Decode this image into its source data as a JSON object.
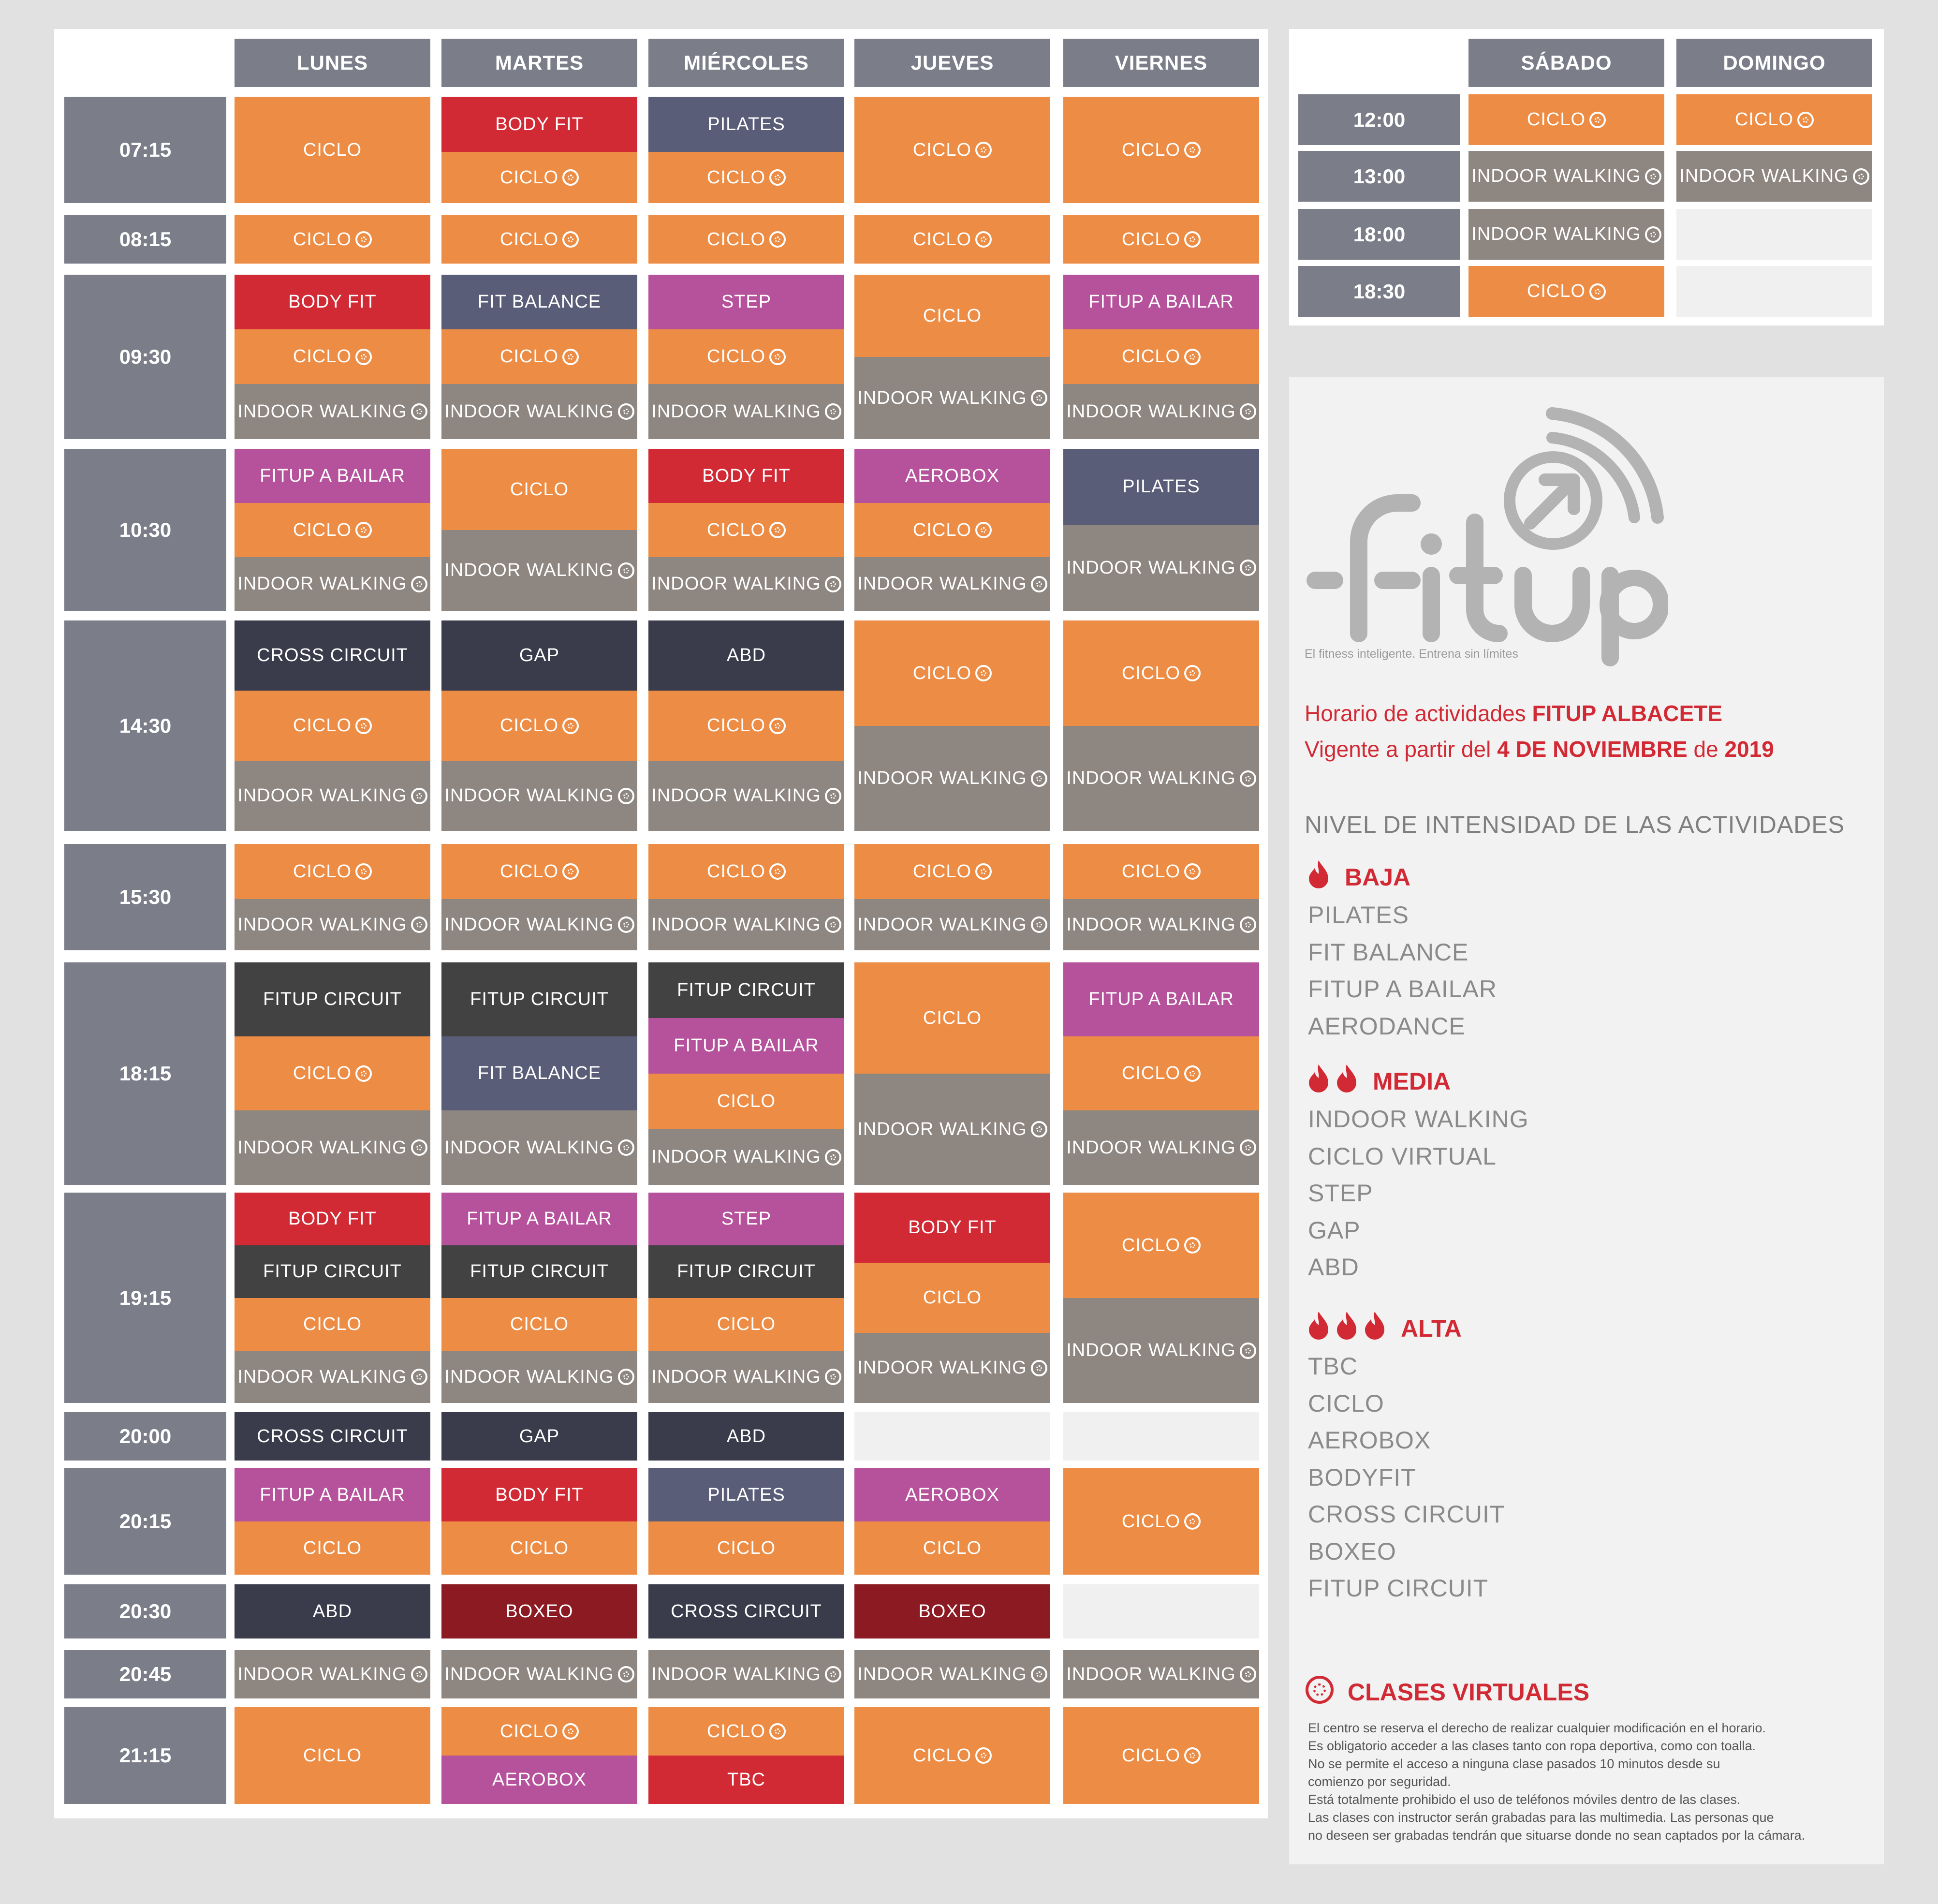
{
  "weekday_headers": [
    "LUNES",
    "MARTES",
    "MIÉRCOLES",
    "JUEVES",
    "VIERNES"
  ],
  "weekend_headers": [
    "SÁBADO",
    "DOMINGO"
  ],
  "colors": {
    "ciclo": "#ed8d45",
    "indoor_walking": "#8e8680",
    "body_fit": "#d22a35",
    "pilates": "#5a5d78",
    "fit_balance": "#5a5d78",
    "step": "#b6519b",
    "fitup_a_bailar": "#b6519b",
    "aerobox": "#b6519b",
    "dark": "#3a3b4b",
    "fitup_circuit": "#424242",
    "boxeo": "#8b1a22",
    "empty": "#f0f0f0",
    "header": "#7b7d89",
    "red_text": "#d22a35"
  },
  "time_rows": [
    {
      "time": "07:15",
      "days": [
        [
          {
            "label": "CICLO",
            "color": "ciclo",
            "v": false
          }
        ],
        [
          {
            "label": "BODY FIT",
            "color": "body_fit",
            "v": false
          },
          {
            "label": "CICLO",
            "color": "ciclo",
            "v": true
          }
        ],
        [
          {
            "label": "PILATES",
            "color": "pilates",
            "v": false
          },
          {
            "label": "CICLO",
            "color": "ciclo",
            "v": true
          }
        ],
        [
          {
            "label": "CICLO",
            "color": "ciclo",
            "v": true
          }
        ],
        [
          {
            "label": "CICLO",
            "color": "ciclo",
            "v": true
          }
        ]
      ]
    },
    {
      "time": "08:15",
      "days": [
        [
          {
            "label": "CICLO",
            "color": "ciclo",
            "v": true
          }
        ],
        [
          {
            "label": "CICLO",
            "color": "ciclo",
            "v": true
          }
        ],
        [
          {
            "label": "CICLO",
            "color": "ciclo",
            "v": true
          }
        ],
        [
          {
            "label": "CICLO",
            "color": "ciclo",
            "v": true
          }
        ],
        [
          {
            "label": "CICLO",
            "color": "ciclo",
            "v": true
          }
        ]
      ]
    },
    {
      "time": "09:30",
      "days": [
        [
          {
            "label": "BODY FIT",
            "color": "body_fit",
            "v": false
          },
          {
            "label": "CICLO",
            "color": "ciclo",
            "v": true
          },
          {
            "label": "INDOOR WALKING",
            "color": "indoor_walking",
            "v": true
          }
        ],
        [
          {
            "label": "FIT BALANCE",
            "color": "fit_balance",
            "v": false
          },
          {
            "label": "CICLO",
            "color": "ciclo",
            "v": true
          },
          {
            "label": "INDOOR WALKING",
            "color": "indoor_walking",
            "v": true
          }
        ],
        [
          {
            "label": "STEP",
            "color": "step",
            "v": false
          },
          {
            "label": "CICLO",
            "color": "ciclo",
            "v": true
          },
          {
            "label": "INDOOR WALKING",
            "color": "indoor_walking",
            "v": true
          }
        ],
        [
          {
            "label": "CICLO",
            "color": "ciclo",
            "v": false
          },
          {
            "label": "INDOOR WALKING",
            "color": "indoor_walking",
            "v": true
          }
        ],
        [
          {
            "label": "FITUP A BAILAR",
            "color": "fitup_a_bailar",
            "v": false
          },
          {
            "label": "CICLO",
            "color": "ciclo",
            "v": true
          },
          {
            "label": "INDOOR WALKING",
            "color": "indoor_walking",
            "v": true
          }
        ]
      ]
    },
    {
      "time": "10:30",
      "days": [
        [
          {
            "label": "FITUP A BAILAR",
            "color": "fitup_a_bailar",
            "v": false
          },
          {
            "label": "CICLO",
            "color": "ciclo",
            "v": true
          },
          {
            "label": "INDOOR WALKING",
            "color": "indoor_walking",
            "v": true
          }
        ],
        [
          {
            "label": "CICLO",
            "color": "ciclo",
            "v": false
          },
          {
            "label": "INDOOR WALKING",
            "color": "indoor_walking",
            "v": true
          }
        ],
        [
          {
            "label": "BODY FIT",
            "color": "body_fit",
            "v": false
          },
          {
            "label": "CICLO",
            "color": "ciclo",
            "v": true
          },
          {
            "label": "INDOOR WALKING",
            "color": "indoor_walking",
            "v": true
          }
        ],
        [
          {
            "label": "AEROBOX",
            "color": "aerobox",
            "v": false
          },
          {
            "label": "CICLO",
            "color": "ciclo",
            "v": true
          },
          {
            "label": "INDOOR WALKING",
            "color": "indoor_walking",
            "v": true
          }
        ],
        [
          {
            "label": "PILATES",
            "color": "pilates",
            "v": false
          },
          {
            "label": "INDOOR WALKING",
            "color": "indoor_walking",
            "v": true
          }
        ]
      ]
    },
    {
      "time": "14:30",
      "days": [
        [
          {
            "label": "CROSS CIRCUIT",
            "color": "dark",
            "v": false
          },
          {
            "label": "CICLO",
            "color": "ciclo",
            "v": true
          },
          {
            "label": "INDOOR WALKING",
            "color": "indoor_walking",
            "v": true
          }
        ],
        [
          {
            "label": "GAP",
            "color": "dark",
            "v": false
          },
          {
            "label": "CICLO",
            "color": "ciclo",
            "v": true
          },
          {
            "label": "INDOOR WALKING",
            "color": "indoor_walking",
            "v": true
          }
        ],
        [
          {
            "label": "ABD",
            "color": "dark",
            "v": false
          },
          {
            "label": "CICLO",
            "color": "ciclo",
            "v": true
          },
          {
            "label": "INDOOR WALKING",
            "color": "indoor_walking",
            "v": true
          }
        ],
        [
          {
            "label": "CICLO",
            "color": "ciclo",
            "v": true
          },
          {
            "label": "INDOOR WALKING",
            "color": "indoor_walking",
            "v": true
          }
        ],
        [
          {
            "label": "CICLO",
            "color": "ciclo",
            "v": true
          },
          {
            "label": "INDOOR WALKING",
            "color": "indoor_walking",
            "v": true
          }
        ]
      ]
    },
    {
      "time": "15:30",
      "days": [
        [
          {
            "label": "CICLO",
            "color": "ciclo",
            "v": true
          },
          {
            "label": "INDOOR WALKING",
            "color": "indoor_walking",
            "v": true
          }
        ],
        [
          {
            "label": "CICLO",
            "color": "ciclo",
            "v": true
          },
          {
            "label": "INDOOR WALKING",
            "color": "indoor_walking",
            "v": true
          }
        ],
        [
          {
            "label": "CICLO",
            "color": "ciclo",
            "v": true
          },
          {
            "label": "INDOOR WALKING",
            "color": "indoor_walking",
            "v": true
          }
        ],
        [
          {
            "label": "CICLO",
            "color": "ciclo",
            "v": true
          },
          {
            "label": "INDOOR WALKING",
            "color": "indoor_walking",
            "v": true
          }
        ],
        [
          {
            "label": "CICLO",
            "color": "ciclo",
            "v": true
          },
          {
            "label": "INDOOR WALKING",
            "color": "indoor_walking",
            "v": true
          }
        ]
      ]
    },
    {
      "time": "18:15",
      "days": [
        [
          {
            "label": "FITUP CIRCUIT",
            "color": "fitup_circuit",
            "v": false
          },
          {
            "label": "CICLO",
            "color": "ciclo",
            "v": true
          },
          {
            "label": "INDOOR WALKING",
            "color": "indoor_walking",
            "v": true
          }
        ],
        [
          {
            "label": "FITUP CIRCUIT",
            "color": "fitup_circuit",
            "v": false
          },
          {
            "label": "FIT BALANCE",
            "color": "fit_balance",
            "v": false
          },
          {
            "label": "INDOOR WALKING",
            "color": "indoor_walking",
            "v": true
          }
        ],
        [
          {
            "label": "FITUP CIRCUIT",
            "color": "fitup_circuit",
            "v": false
          },
          {
            "label": "FITUP A BAILAR",
            "color": "fitup_a_bailar",
            "v": false
          },
          {
            "label": "CICLO",
            "color": "ciclo",
            "v": false
          },
          {
            "label": "INDOOR WALKING",
            "color": "indoor_walking",
            "v": true
          }
        ],
        [
          {
            "label": "CICLO",
            "color": "ciclo",
            "v": false
          },
          {
            "label": "INDOOR WALKING",
            "color": "indoor_walking",
            "v": true
          }
        ],
        [
          {
            "label": "FITUP A BAILAR",
            "color": "fitup_a_bailar",
            "v": false
          },
          {
            "label": "CICLO",
            "color": "ciclo",
            "v": true
          },
          {
            "label": "INDOOR WALKING",
            "color": "indoor_walking",
            "v": true
          }
        ]
      ]
    },
    {
      "time": "19:15",
      "days": [
        [
          {
            "label": "BODY FIT",
            "color": "body_fit",
            "v": false
          },
          {
            "label": "FITUP CIRCUIT",
            "color": "fitup_circuit",
            "v": false
          },
          {
            "label": "CICLO",
            "color": "ciclo",
            "v": false
          },
          {
            "label": "INDOOR WALKING",
            "color": "indoor_walking",
            "v": true
          }
        ],
        [
          {
            "label": "FITUP A BAILAR",
            "color": "fitup_a_bailar",
            "v": false
          },
          {
            "label": "FITUP CIRCUIT",
            "color": "fitup_circuit",
            "v": false
          },
          {
            "label": "CICLO",
            "color": "ciclo",
            "v": false
          },
          {
            "label": "INDOOR WALKING",
            "color": "indoor_walking",
            "v": true
          }
        ],
        [
          {
            "label": "STEP",
            "color": "step",
            "v": false
          },
          {
            "label": "FITUP CIRCUIT",
            "color": "fitup_circuit",
            "v": false
          },
          {
            "label": "CICLO",
            "color": "ciclo",
            "v": false
          },
          {
            "label": "INDOOR WALKING",
            "color": "indoor_walking",
            "v": true
          }
        ],
        [
          {
            "label": "BODY FIT",
            "color": "body_fit",
            "v": false
          },
          {
            "label": "CICLO",
            "color": "ciclo",
            "v": false
          },
          {
            "label": "INDOOR WALKING",
            "color": "indoor_walking",
            "v": true
          }
        ],
        [
          {
            "label": "CICLO",
            "color": "ciclo",
            "v": true
          },
          {
            "label": "INDOOR WALKING",
            "color": "indoor_walking",
            "v": true
          }
        ]
      ]
    },
    {
      "time": "20:00",
      "days": [
        [
          {
            "label": "CROSS CIRCUIT",
            "color": "dark",
            "v": false
          }
        ],
        [
          {
            "label": "GAP",
            "color": "dark",
            "v": false
          }
        ],
        [
          {
            "label": "ABD",
            "color": "dark",
            "v": false
          }
        ],
        [
          {
            "label": "",
            "color": "empty",
            "v": false
          }
        ],
        [
          {
            "label": "",
            "color": "empty",
            "v": false
          }
        ]
      ]
    },
    {
      "time": "20:15",
      "days": [
        [
          {
            "label": "FITUP A BAILAR",
            "color": "fitup_a_bailar",
            "v": false
          },
          {
            "label": "CICLO",
            "color": "ciclo",
            "v": false
          }
        ],
        [
          {
            "label": "BODY FIT",
            "color": "body_fit",
            "v": false
          },
          {
            "label": "CICLO",
            "color": "ciclo",
            "v": false
          }
        ],
        [
          {
            "label": "PILATES",
            "color": "pilates",
            "v": false
          },
          {
            "label": "CICLO",
            "color": "ciclo",
            "v": false
          }
        ],
        [
          {
            "label": "AEROBOX",
            "color": "aerobox",
            "v": false
          },
          {
            "label": "CICLO",
            "color": "ciclo",
            "v": false
          }
        ],
        [
          {
            "label": "CICLO",
            "color": "ciclo",
            "v": true
          }
        ]
      ]
    },
    {
      "time": "20:30",
      "days": [
        [
          {
            "label": "ABD",
            "color": "dark",
            "v": false
          }
        ],
        [
          {
            "label": "BOXEO",
            "color": "boxeo",
            "v": false
          }
        ],
        [
          {
            "label": "CROSS CIRCUIT",
            "color": "dark",
            "v": false
          }
        ],
        [
          {
            "label": "BOXEO",
            "color": "boxeo",
            "v": false
          }
        ],
        [
          {
            "label": "",
            "color": "empty",
            "v": false
          }
        ]
      ]
    },
    {
      "time": "20:45",
      "days": [
        [
          {
            "label": "INDOOR WALKING",
            "color": "indoor_walking",
            "v": true
          }
        ],
        [
          {
            "label": "INDOOR WALKING",
            "color": "indoor_walking",
            "v": true
          }
        ],
        [
          {
            "label": "INDOOR WALKING",
            "color": "indoor_walking",
            "v": true
          }
        ],
        [
          {
            "label": "INDOOR WALKING",
            "color": "indoor_walking",
            "v": true
          }
        ],
        [
          {
            "label": "INDOOR WALKING",
            "color": "indoor_walking",
            "v": true
          }
        ]
      ]
    },
    {
      "time": "21:15",
      "days": [
        [
          {
            "label": "CICLO",
            "color": "ciclo",
            "v": false
          }
        ],
        [
          {
            "label": "CICLO",
            "color": "ciclo",
            "v": true
          },
          {
            "label": "AEROBOX",
            "color": "aerobox",
            "v": false
          }
        ],
        [
          {
            "label": "CICLO",
            "color": "ciclo",
            "v": true
          },
          {
            "label": "TBC",
            "color": "body_fit",
            "v": false
          }
        ],
        [
          {
            "label": "CICLO",
            "color": "ciclo",
            "v": true
          }
        ],
        [
          {
            "label": "CICLO",
            "color": "ciclo",
            "v": true
          }
        ]
      ]
    }
  ],
  "weekend_rows": [
    {
      "time": "12:00",
      "days": [
        {
          "label": "CICLO",
          "color": "ciclo",
          "v": true
        },
        {
          "label": "CICLO",
          "color": "ciclo",
          "v": true
        }
      ]
    },
    {
      "time": "13:00",
      "days": [
        {
          "label": "INDOOR WALKING",
          "color": "indoor_walking",
          "v": true
        },
        {
          "label": "INDOOR WALKING",
          "color": "indoor_walking",
          "v": true
        }
      ]
    },
    {
      "time": "18:00",
      "days": [
        {
          "label": "INDOOR WALKING",
          "color": "indoor_walking",
          "v": true
        },
        {
          "label": "",
          "color": "empty",
          "v": false
        }
      ]
    },
    {
      "time": "18:30",
      "days": [
        {
          "label": "CICLO",
          "color": "ciclo",
          "v": true
        },
        {
          "label": "",
          "color": "empty",
          "v": false
        }
      ]
    }
  ],
  "logo": {
    "text": "fitup",
    "tagline": "El fitness inteligente. Entrena sin límites"
  },
  "info": {
    "line1_prefix": "Horario de actividades ",
    "line1_strong": "FITUP ALBACETE",
    "line2_prefix": "Vigente a partir del ",
    "line2_strong1": "4 DE NOVIEMBRE",
    "line2_mid": " de ",
    "line2_strong2": "2019",
    "intensity_title": "NIVEL DE INTENSIDAD DE LAS ACTIVIDADES"
  },
  "levels": [
    {
      "name": "BAJA",
      "flames": 1,
      "items": [
        "PILATES",
        "FIT BALANCE",
        "FITUP A BAILAR",
        "AERODANCE"
      ]
    },
    {
      "name": "MEDIA",
      "flames": 2,
      "items": [
        "INDOOR WALKING",
        "CICLO VIRTUAL",
        "STEP",
        "GAP",
        "ABD"
      ]
    },
    {
      "name": "ALTA",
      "flames": 3,
      "items": [
        "TBC",
        "CICLO",
        "AEROBOX",
        "BODYFIT",
        "CROSS CIRCUIT",
        "BOXEO",
        "FITUP CIRCUIT"
      ]
    }
  ],
  "virtual": {
    "title": "CLASES VIRTUALES",
    "icon": "virtual-class-icon"
  },
  "disclaimer": [
    "El centro se reserva el derecho de realizar cualquier modificación en el horario.",
    "Es obligatorio acceder a las clases tanto con ropa deportiva, como con toalla.",
    "No se permite el acceso a ninguna clase pasados 10 minutos desde su",
    "comienzo por seguridad.",
    "Está totalmente prohibido el uso de teléfonos móviles dentro de las clases.",
    "Las clases con instructor serán grabadas para las multimedia. Las personas que",
    "no deseen ser grabadas tendrán que situarse donde no sean captados por la cámara."
  ]
}
